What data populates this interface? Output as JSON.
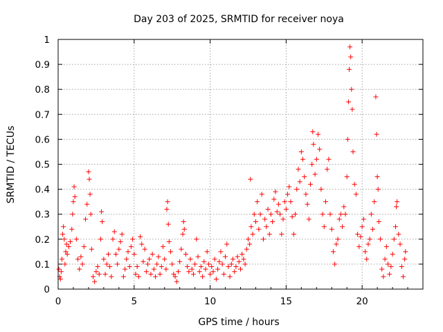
{
  "chart_data": {
    "type": "scatter",
    "title": "Day 203 of 2025, SRMTID for receiver noya",
    "xlabel": "GPS time / hours",
    "ylabel": "SRMTID / TECUs",
    "xlim": [
      0,
      24
    ],
    "ylim": [
      0,
      1
    ],
    "xticks": [
      0,
      5,
      10,
      15,
      20
    ],
    "yticks": [
      0,
      0.1,
      0.2,
      0.3,
      0.4,
      0.5,
      0.6,
      0.7,
      0.8,
      0.9,
      1
    ],
    "xtick_labels": [
      "0",
      "5",
      "10",
      "15",
      "20"
    ],
    "ytick_labels": [
      "0",
      "0.1",
      "0.2",
      "0.3",
      "0.4",
      "0.5",
      "0.6",
      "0.7",
      "0.8",
      "0.9",
      "1"
    ],
    "grid": true,
    "marker": "+",
    "marker_color": "#ff0000",
    "series": [
      {
        "name": "SRMTID",
        "points": [
          [
            0.05,
            0.08
          ],
          [
            0.1,
            0.05
          ],
          [
            0.15,
            0.04
          ],
          [
            0.2,
            0.07
          ],
          [
            0.25,
            0.12
          ],
          [
            0.3,
            0.22
          ],
          [
            0.35,
            0.25
          ],
          [
            0.4,
            0.2
          ],
          [
            0.45,
            0.1
          ],
          [
            0.5,
            0.15
          ],
          [
            0.55,
            0.18
          ],
          [
            0.6,
            0.14
          ],
          [
            0.7,
            0.17
          ],
          [
            0.8,
            0.19
          ],
          [
            0.9,
            0.24
          ],
          [
            0.95,
            0.3
          ],
          [
            1.0,
            0.35
          ],
          [
            1.05,
            0.41
          ],
          [
            1.1,
            0.37
          ],
          [
            1.2,
            0.2
          ],
          [
            1.3,
            0.12
          ],
          [
            1.4,
            0.08
          ],
          [
            1.5,
            0.13
          ],
          [
            1.6,
            0.1
          ],
          [
            1.7,
            0.17
          ],
          [
            1.8,
            0.28
          ],
          [
            1.9,
            0.34
          ],
          [
            2.0,
            0.47
          ],
          [
            2.05,
            0.44
          ],
          [
            2.1,
            0.38
          ],
          [
            2.15,
            0.3
          ],
          [
            2.2,
            0.16
          ],
          [
            2.3,
            0.05
          ],
          [
            2.4,
            0.03
          ],
          [
            2.5,
            0.07
          ],
          [
            2.6,
            0.09
          ],
          [
            2.7,
            0.06
          ],
          [
            2.8,
            0.2
          ],
          [
            2.85,
            0.31
          ],
          [
            2.9,
            0.27
          ],
          [
            3.0,
            0.12
          ],
          [
            3.1,
            0.06
          ],
          [
            3.2,
            0.1
          ],
          [
            3.3,
            0.14
          ],
          [
            3.4,
            0.09
          ],
          [
            3.5,
            0.05
          ],
          [
            3.6,
            0.2
          ],
          [
            3.7,
            0.23
          ],
          [
            3.8,
            0.14
          ],
          [
            3.9,
            0.1
          ],
          [
            4.0,
            0.16
          ],
          [
            4.1,
            0.19
          ],
          [
            4.2,
            0.22
          ],
          [
            4.3,
            0.05
          ],
          [
            4.4,
            0.08
          ],
          [
            4.5,
            0.12
          ],
          [
            4.6,
            0.15
          ],
          [
            4.7,
            0.09
          ],
          [
            4.8,
            0.17
          ],
          [
            4.9,
            0.2
          ],
          [
            5.0,
            0.14
          ],
          [
            5.1,
            0.06
          ],
          [
            5.2,
            0.09
          ],
          [
            5.3,
            0.05
          ],
          [
            5.4,
            0.21
          ],
          [
            5.5,
            0.18
          ],
          [
            5.6,
            0.11
          ],
          [
            5.7,
            0.16
          ],
          [
            5.8,
            0.07
          ],
          [
            5.9,
            0.1
          ],
          [
            6.0,
            0.12
          ],
          [
            6.1,
            0.06
          ],
          [
            6.2,
            0.14
          ],
          [
            6.3,
            0.08
          ],
          [
            6.4,
            0.05
          ],
          [
            6.5,
            0.1
          ],
          [
            6.6,
            0.13
          ],
          [
            6.7,
            0.06
          ],
          [
            6.8,
            0.09
          ],
          [
            6.9,
            0.17
          ],
          [
            7.0,
            0.12
          ],
          [
            7.1,
            0.08
          ],
          [
            7.15,
            0.32
          ],
          [
            7.2,
            0.35
          ],
          [
            7.25,
            0.26
          ],
          [
            7.3,
            0.19
          ],
          [
            7.4,
            0.15
          ],
          [
            7.5,
            0.1
          ],
          [
            7.6,
            0.06
          ],
          [
            7.7,
            0.05
          ],
          [
            7.8,
            0.03
          ],
          [
            7.9,
            0.07
          ],
          [
            8.0,
            0.11
          ],
          [
            8.1,
            0.16
          ],
          [
            8.2,
            0.22
          ],
          [
            8.25,
            0.27
          ],
          [
            8.3,
            0.24
          ],
          [
            8.4,
            0.14
          ],
          [
            8.5,
            0.09
          ],
          [
            8.6,
            0.07
          ],
          [
            8.7,
            0.12
          ],
          [
            8.8,
            0.08
          ],
          [
            8.9,
            0.06
          ],
          [
            9.0,
            0.1
          ],
          [
            9.1,
            0.2
          ],
          [
            9.2,
            0.13
          ],
          [
            9.3,
            0.07
          ],
          [
            9.4,
            0.09
          ],
          [
            9.5,
            0.05
          ],
          [
            9.6,
            0.11
          ],
          [
            9.7,
            0.08
          ],
          [
            9.8,
            0.15
          ],
          [
            9.9,
            0.1
          ],
          [
            10.0,
            0.06
          ],
          [
            10.1,
            0.09
          ],
          [
            10.2,
            0.07
          ],
          [
            10.3,
            0.12
          ],
          [
            10.4,
            0.04
          ],
          [
            10.5,
            0.08
          ],
          [
            10.6,
            0.11
          ],
          [
            10.7,
            0.15
          ],
          [
            10.8,
            0.1
          ],
          [
            10.9,
            0.06
          ],
          [
            11.0,
            0.13
          ],
          [
            11.1,
            0.18
          ],
          [
            11.2,
            0.09
          ],
          [
            11.3,
            0.05
          ],
          [
            11.4,
            0.1
          ],
          [
            11.5,
            0.12
          ],
          [
            11.6,
            0.07
          ],
          [
            11.7,
            0.09
          ],
          [
            11.8,
            0.13
          ],
          [
            11.9,
            0.11
          ],
          [
            12.0,
            0.08
          ],
          [
            12.1,
            0.14
          ],
          [
            12.2,
            0.12
          ],
          [
            12.3,
            0.1
          ],
          [
            12.4,
            0.16
          ],
          [
            12.5,
            0.2
          ],
          [
            12.6,
            0.18
          ],
          [
            12.65,
            0.44
          ],
          [
            12.7,
            0.25
          ],
          [
            12.8,
            0.22
          ],
          [
            12.9,
            0.3
          ],
          [
            13.0,
            0.27
          ],
          [
            13.1,
            0.35
          ],
          [
            13.2,
            0.24
          ],
          [
            13.3,
            0.3
          ],
          [
            13.4,
            0.38
          ],
          [
            13.5,
            0.2
          ],
          [
            13.6,
            0.28
          ],
          [
            13.7,
            0.25
          ],
          [
            13.8,
            0.32
          ],
          [
            13.9,
            0.22
          ],
          [
            14.0,
            0.3
          ],
          [
            14.1,
            0.27
          ],
          [
            14.2,
            0.36
          ],
          [
            14.3,
            0.39
          ],
          [
            14.4,
            0.31
          ],
          [
            14.5,
            0.34
          ],
          [
            14.6,
            0.3
          ],
          [
            14.7,
            0.22
          ],
          [
            14.8,
            0.28
          ],
          [
            14.9,
            0.35
          ],
          [
            15.0,
            0.32
          ],
          [
            15.1,
            0.38
          ],
          [
            15.2,
            0.41
          ],
          [
            15.3,
            0.35
          ],
          [
            15.4,
            0.29
          ],
          [
            15.5,
            0.22
          ],
          [
            15.6,
            0.3
          ],
          [
            15.7,
            0.4
          ],
          [
            15.8,
            0.48
          ],
          [
            15.9,
            0.43
          ],
          [
            16.0,
            0.55
          ],
          [
            16.1,
            0.52
          ],
          [
            16.2,
            0.45
          ],
          [
            16.3,
            0.38
          ],
          [
            16.4,
            0.34
          ],
          [
            16.5,
            0.28
          ],
          [
            16.6,
            0.42
          ],
          [
            16.7,
            0.5
          ],
          [
            16.75,
            0.63
          ],
          [
            16.8,
            0.58
          ],
          [
            16.9,
            0.46
          ],
          [
            17.0,
            0.52
          ],
          [
            17.1,
            0.62
          ],
          [
            17.2,
            0.56
          ],
          [
            17.3,
            0.4
          ],
          [
            17.4,
            0.3
          ],
          [
            17.5,
            0.25
          ],
          [
            17.6,
            0.35
          ],
          [
            17.7,
            0.48
          ],
          [
            17.8,
            0.52
          ],
          [
            17.9,
            0.3
          ],
          [
            18.0,
            0.24
          ],
          [
            18.1,
            0.15
          ],
          [
            18.2,
            0.1
          ],
          [
            18.3,
            0.18
          ],
          [
            18.4,
            0.2
          ],
          [
            18.5,
            0.28
          ],
          [
            18.6,
            0.3
          ],
          [
            18.7,
            0.25
          ],
          [
            18.8,
            0.33
          ],
          [
            18.9,
            0.3
          ],
          [
            19.0,
            0.45
          ],
          [
            19.05,
            0.6
          ],
          [
            19.1,
            0.75
          ],
          [
            19.15,
            0.88
          ],
          [
            19.2,
            0.97
          ],
          [
            19.25,
            0.93
          ],
          [
            19.3,
            0.8
          ],
          [
            19.35,
            0.72
          ],
          [
            19.4,
            0.55
          ],
          [
            19.5,
            0.42
          ],
          [
            19.6,
            0.38
          ],
          [
            19.7,
            0.22
          ],
          [
            19.8,
            0.17
          ],
          [
            19.9,
            0.21
          ],
          [
            20.0,
            0.25
          ],
          [
            20.1,
            0.28
          ],
          [
            20.2,
            0.15
          ],
          [
            20.3,
            0.12
          ],
          [
            20.4,
            0.18
          ],
          [
            20.5,
            0.2
          ],
          [
            20.6,
            0.3
          ],
          [
            20.7,
            0.24
          ],
          [
            20.8,
            0.35
          ],
          [
            20.9,
            0.77
          ],
          [
            20.95,
            0.62
          ],
          [
            21.0,
            0.45
          ],
          [
            21.05,
            0.4
          ],
          [
            21.1,
            0.27
          ],
          [
            21.2,
            0.2
          ],
          [
            21.3,
            0.08
          ],
          [
            21.4,
            0.05
          ],
          [
            21.5,
            0.12
          ],
          [
            21.6,
            0.17
          ],
          [
            21.7,
            0.1
          ],
          [
            21.8,
            0.06
          ],
          [
            21.9,
            0.09
          ],
          [
            22.0,
            0.14
          ],
          [
            22.1,
            0.2
          ],
          [
            22.2,
            0.25
          ],
          [
            22.25,
            0.33
          ],
          [
            22.3,
            0.35
          ],
          [
            22.4,
            0.22
          ],
          [
            22.5,
            0.18
          ],
          [
            22.6,
            0.09
          ],
          [
            22.7,
            0.05
          ],
          [
            22.8,
            0.12
          ],
          [
            22.85,
            0.15
          ]
        ]
      }
    ]
  }
}
